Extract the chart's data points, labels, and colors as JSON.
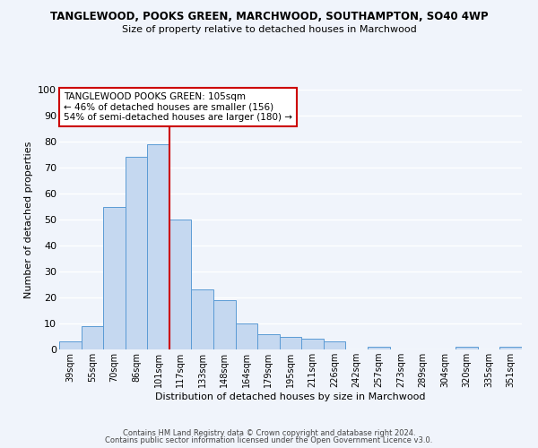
{
  "title": "TANGLEWOOD, POOKS GREEN, MARCHWOOD, SOUTHAMPTON, SO40 4WP",
  "subtitle": "Size of property relative to detached houses in Marchwood",
  "xlabel": "Distribution of detached houses by size in Marchwood",
  "ylabel": "Number of detached properties",
  "bar_color": "#c5d8f0",
  "bar_edge_color": "#5b9bd5",
  "bg_color": "#f0f4fb",
  "grid_color": "#ffffff",
  "categories": [
    "39sqm",
    "55sqm",
    "70sqm",
    "86sqm",
    "101sqm",
    "117sqm",
    "133sqm",
    "148sqm",
    "164sqm",
    "179sqm",
    "195sqm",
    "211sqm",
    "226sqm",
    "242sqm",
    "257sqm",
    "273sqm",
    "289sqm",
    "304sqm",
    "320sqm",
    "335sqm",
    "351sqm"
  ],
  "values": [
    3,
    9,
    55,
    74,
    79,
    50,
    23,
    19,
    10,
    6,
    5,
    4,
    3,
    0,
    1,
    0,
    0,
    0,
    1,
    0,
    1
  ],
  "ylim": [
    0,
    100
  ],
  "yticks": [
    0,
    10,
    20,
    30,
    40,
    50,
    60,
    70,
    80,
    90,
    100
  ],
  "vline_index": 4,
  "vline_color": "#cc0000",
  "annotation_title": "TANGLEWOOD POOKS GREEN: 105sqm",
  "annotation_line1": "← 46% of detached houses are smaller (156)",
  "annotation_line2": "54% of semi-detached houses are larger (180) →",
  "annotation_box_color": "#ffffff",
  "annotation_box_edge": "#cc0000",
  "footer1": "Contains HM Land Registry data © Crown copyright and database right 2024.",
  "footer2": "Contains public sector information licensed under the Open Government Licence v3.0."
}
